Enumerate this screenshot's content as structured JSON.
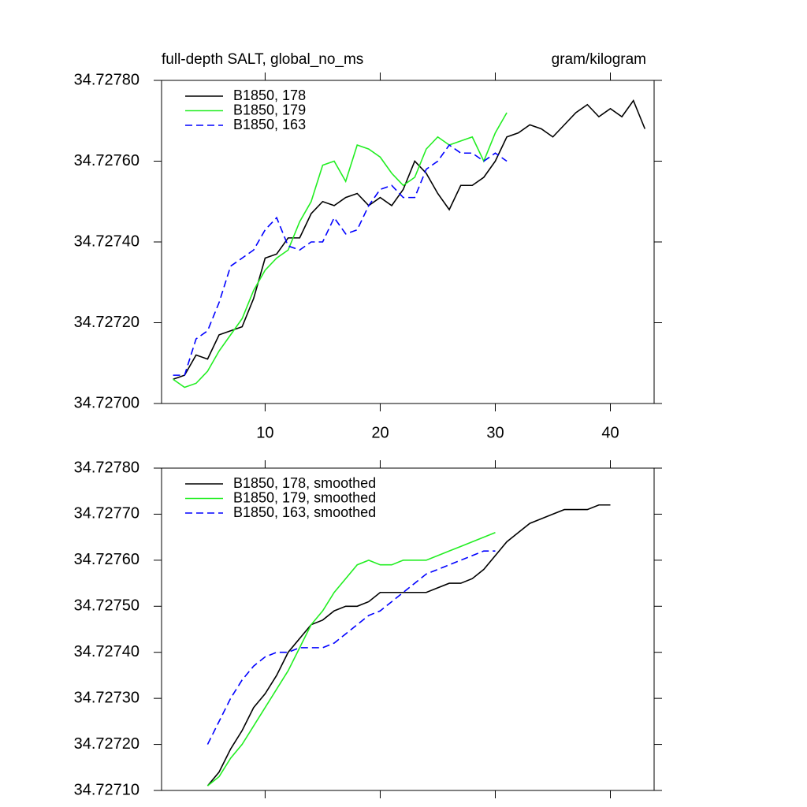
{
  "chart_data": [
    {
      "type": "line",
      "title": "full-depth SALT, global_no_ms",
      "subtitle": "gram/kilogram",
      "x": [
        2,
        3,
        4,
        5,
        6,
        7,
        8,
        9,
        10,
        11,
        12,
        13,
        14,
        15,
        16,
        17,
        18,
        19,
        20,
        21,
        22,
        23,
        24,
        25,
        26,
        27,
        28,
        29,
        30,
        31,
        32,
        33,
        34,
        35,
        36,
        37,
        38,
        39,
        40,
        41,
        42,
        43
      ],
      "series": [
        {
          "name": "B1850, 178",
          "color": "#000000",
          "dash": false,
          "values": [
            34.72706,
            34.72707,
            34.72712,
            34.72711,
            34.72717,
            34.72718,
            34.72719,
            34.72726,
            34.72736,
            34.72737,
            34.72741,
            34.72741,
            34.72747,
            34.7275,
            34.72749,
            34.72751,
            34.72752,
            34.72749,
            34.72751,
            34.72749,
            34.72753,
            34.7276,
            34.72757,
            34.72752,
            34.72748,
            34.72754,
            34.72754,
            34.72756,
            34.7276,
            34.72766,
            34.72767,
            34.72769,
            34.72768,
            34.72766,
            34.72769,
            34.72772,
            34.72774,
            34.72771,
            34.72773,
            34.72771,
            34.72775,
            34.72768
          ]
        },
        {
          "name": "B1850, 179",
          "color": "#22ee22",
          "dash": false,
          "values": [
            34.72706,
            34.72704,
            34.72705,
            34.72708,
            34.72713,
            34.72717,
            34.72721,
            34.72728,
            34.72733,
            34.72736,
            34.72738,
            34.72745,
            34.7275,
            34.72759,
            34.7276,
            34.72755,
            34.72764,
            34.72763,
            34.72761,
            34.72757,
            34.72754,
            34.72756,
            34.72763,
            34.72766,
            34.72764,
            34.72765,
            34.72766,
            34.7276,
            34.72767,
            34.72772,
            null,
            null,
            null,
            null,
            null,
            null,
            null,
            null,
            null,
            null,
            null,
            null
          ]
        },
        {
          "name": "B1850, 163",
          "color": "#0000ff",
          "dash": true,
          "values": [
            34.72707,
            34.72707,
            34.72716,
            34.72718,
            34.72725,
            34.72734,
            34.72736,
            34.72738,
            34.72743,
            34.72746,
            34.72739,
            34.72738,
            34.7274,
            34.7274,
            34.72746,
            34.72742,
            34.72743,
            34.72749,
            34.72753,
            34.72754,
            34.72751,
            34.72751,
            34.72758,
            34.7276,
            34.72764,
            34.72762,
            34.72762,
            34.7276,
            34.72762,
            34.7276,
            null,
            null,
            null,
            null,
            null,
            null,
            null,
            null,
            null,
            null,
            null,
            null
          ]
        }
      ],
      "xlim": [
        1,
        43.8
      ],
      "xticks": [
        10,
        20,
        30,
        40
      ],
      "xtick_labels": true,
      "ylim": [
        34.727,
        34.7278
      ],
      "yticks": [
        {
          "value": 34.727,
          "label": "34.72700"
        },
        {
          "value": 34.7272,
          "label": "34.72720"
        },
        {
          "value": 34.7274,
          "label": "34.72740"
        },
        {
          "value": 34.7276,
          "label": "34.72760"
        },
        {
          "value": 34.7278,
          "label": "34.72780"
        }
      ],
      "legend": "top-left"
    },
    {
      "type": "line",
      "x": [
        5,
        6,
        7,
        8,
        9,
        10,
        11,
        12,
        13,
        14,
        15,
        16,
        17,
        18,
        19,
        20,
        21,
        22,
        23,
        24,
        25,
        26,
        27,
        28,
        29,
        30,
        31,
        32,
        33,
        34,
        35,
        36,
        37,
        38,
        39,
        40
      ],
      "series": [
        {
          "name": "B1850, 178, smoothed",
          "color": "#000000",
          "dash": false,
          "values": [
            34.72711,
            34.72714,
            34.72719,
            34.72723,
            34.72728,
            34.72731,
            34.72735,
            34.7274,
            34.72743,
            34.72746,
            34.72747,
            34.72749,
            34.7275,
            34.7275,
            34.72751,
            34.72753,
            34.72753,
            34.72753,
            34.72753,
            34.72753,
            34.72754,
            34.72755,
            34.72755,
            34.72756,
            34.72758,
            34.72761,
            34.72764,
            34.72766,
            34.72768,
            34.72769,
            34.7277,
            34.72771,
            34.72771,
            34.72771,
            34.72772,
            34.72772
          ]
        },
        {
          "name": "B1850, 179, smoothed",
          "color": "#22ee22",
          "dash": false,
          "values": [
            34.72711,
            34.72713,
            34.72717,
            34.7272,
            34.72724,
            34.72728,
            34.72732,
            34.72736,
            34.72741,
            34.72746,
            34.72749,
            34.72753,
            34.72756,
            34.72759,
            34.7276,
            34.72759,
            34.72759,
            34.7276,
            34.7276,
            34.7276,
            34.72761,
            34.72762,
            34.72763,
            34.72764,
            34.72765,
            34.72766,
            null,
            null,
            null,
            null,
            null,
            null,
            null,
            null,
            null,
            null
          ]
        },
        {
          "name": "B1850, 163, smoothed",
          "color": "#0000ff",
          "dash": true,
          "values": [
            34.7272,
            34.72725,
            34.7273,
            34.72734,
            34.72737,
            34.72739,
            34.7274,
            34.7274,
            34.72741,
            34.72741,
            34.72741,
            34.72742,
            34.72744,
            34.72746,
            34.72748,
            34.72749,
            34.72751,
            34.72753,
            34.72755,
            34.72757,
            34.72758,
            34.72759,
            34.7276,
            34.72761,
            34.72762,
            34.72762,
            null,
            null,
            null,
            null,
            null,
            null,
            null,
            null,
            null,
            null
          ]
        }
      ],
      "xlim": [
        1,
        43.8
      ],
      "xticks": [
        10,
        20,
        30,
        40
      ],
      "xtick_labels": false,
      "ylim": [
        34.7271,
        34.7278
      ],
      "yticks": [
        {
          "value": 34.7271,
          "label": "34.72710"
        },
        {
          "value": 34.7272,
          "label": "34.72720"
        },
        {
          "value": 34.7273,
          "label": "34.72730"
        },
        {
          "value": 34.7274,
          "label": "34.72740"
        },
        {
          "value": 34.7275,
          "label": "34.72750"
        },
        {
          "value": 34.7276,
          "label": "34.72760"
        },
        {
          "value": 34.7277,
          "label": "34.72770"
        },
        {
          "value": 34.7278,
          "label": "34.72780"
        }
      ],
      "legend": "top-left"
    }
  ]
}
